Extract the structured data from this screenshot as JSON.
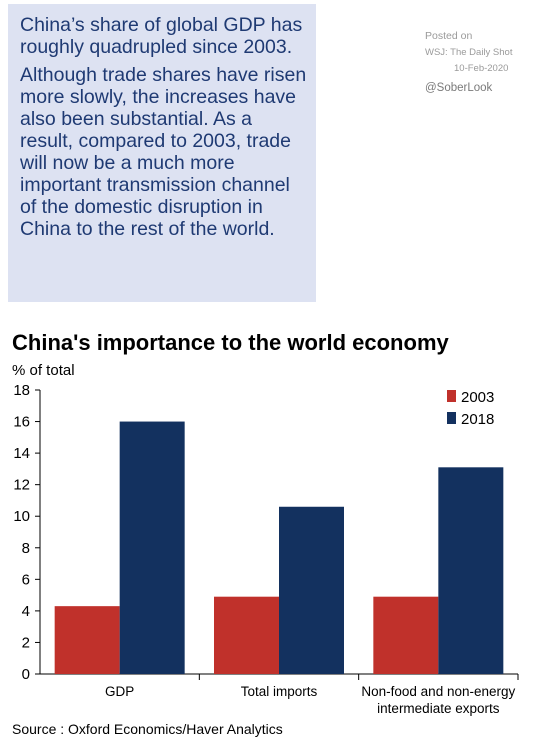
{
  "note": {
    "p1": "China’s share of global GDP has roughly quadrupled since 2003.",
    "p2": "Although trade shares have risen more slowly, the increases have also been substantial. As a result, compared to 2003, trade will now be a much more important transmission channel of the domestic disruption in China to the rest of the world."
  },
  "credit": {
    "posted": "Posted on",
    "outlet": "WSJ: The Daily Shot",
    "date": "10-Feb-2020",
    "handle": "@SoberLook"
  },
  "source": "Source : Oxford Economics/Haver Analytics",
  "chart_data": {
    "type": "bar",
    "title": "China's importance to the world economy",
    "ylabel": "% of total",
    "xlabel": "",
    "categories": [
      "GDP",
      "Total imports",
      "Non-food and non-energy intermediate exports"
    ],
    "category_lines": [
      [
        "GDP"
      ],
      [
        "Total imports"
      ],
      [
        "Non-food and non-energy",
        "intermediate exports"
      ]
    ],
    "series": [
      {
        "name": "2003",
        "values": [
          4.3,
          4.9,
          4.9
        ],
        "color": "#c0312b"
      },
      {
        "name": "2018",
        "values": [
          16.0,
          10.6,
          13.1
        ],
        "color": "#13315f"
      }
    ],
    "ylim": [
      0,
      18
    ],
    "yticks": [
      0,
      2,
      4,
      6,
      8,
      10,
      12,
      14,
      16,
      18
    ],
    "grid": false,
    "legend_position": "top-right"
  }
}
